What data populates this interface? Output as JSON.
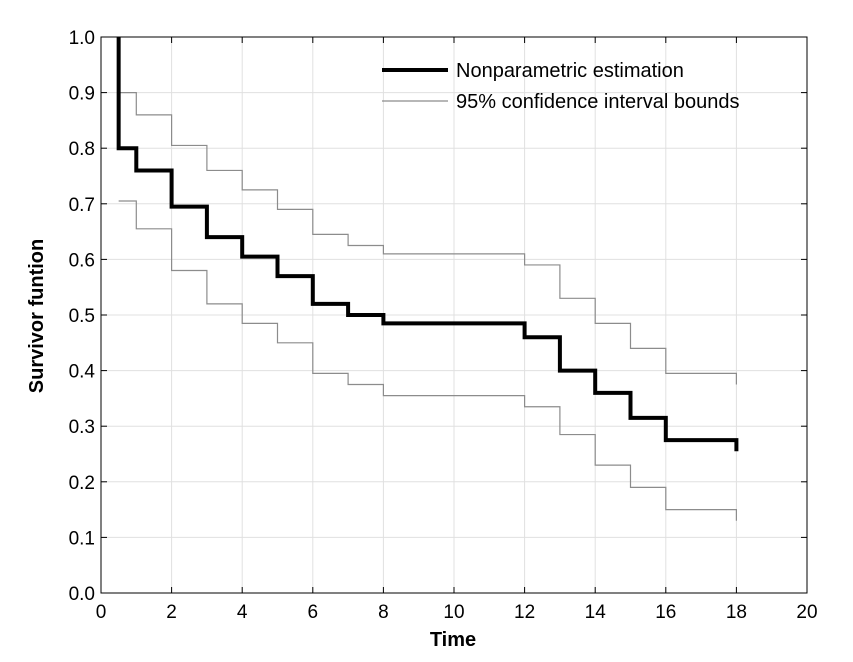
{
  "chart_data": {
    "type": "line",
    "xlabel": "Time",
    "ylabel": "Survivor funtion",
    "xlim": [
      0,
      20
    ],
    "ylim": [
      0,
      1
    ],
    "xticks": [
      "0",
      "2",
      "4",
      "6",
      "8",
      "10",
      "12",
      "14",
      "16",
      "18",
      "20"
    ],
    "yticks": [
      "0.0",
      "0.1",
      "0.2",
      "0.3",
      "0.4",
      "0.5",
      "0.6",
      "0.7",
      "0.8",
      "0.9",
      "1.0"
    ],
    "grid": true,
    "legend_position": "top-right",
    "step": true,
    "series": [
      {
        "name": "Nonparametric estimation",
        "color": "#000000",
        "style": "thick",
        "x": [
          0.5,
          0.5,
          1,
          2,
          3,
          4,
          5,
          6,
          7,
          8,
          12,
          13,
          14,
          15,
          16,
          18,
          18
        ],
        "y": [
          1.0,
          0.8,
          0.76,
          0.695,
          0.64,
          0.605,
          0.57,
          0.52,
          0.5,
          0.485,
          0.46,
          0.4,
          0.36,
          0.315,
          0.275,
          0.275,
          0.255
        ]
      },
      {
        "name": "95% confidence interval bounds",
        "color": "#8c8c8c",
        "style": "thin",
        "x": [
          0.5,
          1,
          2,
          3,
          4,
          5,
          6,
          7,
          8,
          12,
          13,
          14,
          15,
          16,
          18,
          18
        ],
        "y": [
          0.9,
          0.86,
          0.805,
          0.76,
          0.725,
          0.69,
          0.645,
          0.625,
          0.61,
          0.59,
          0.53,
          0.485,
          0.44,
          0.395,
          0.395,
          0.375
        ]
      },
      {
        "name": "",
        "color": "#8c8c8c",
        "style": "thin",
        "x": [
          0.5,
          1,
          2,
          3,
          4,
          5,
          6,
          7,
          8,
          12,
          13,
          14,
          15,
          16,
          18,
          18
        ],
        "y": [
          0.705,
          0.655,
          0.58,
          0.52,
          0.485,
          0.45,
          0.395,
          0.375,
          0.355,
          0.335,
          0.285,
          0.23,
          0.19,
          0.15,
          0.15,
          0.13
        ]
      }
    ]
  }
}
